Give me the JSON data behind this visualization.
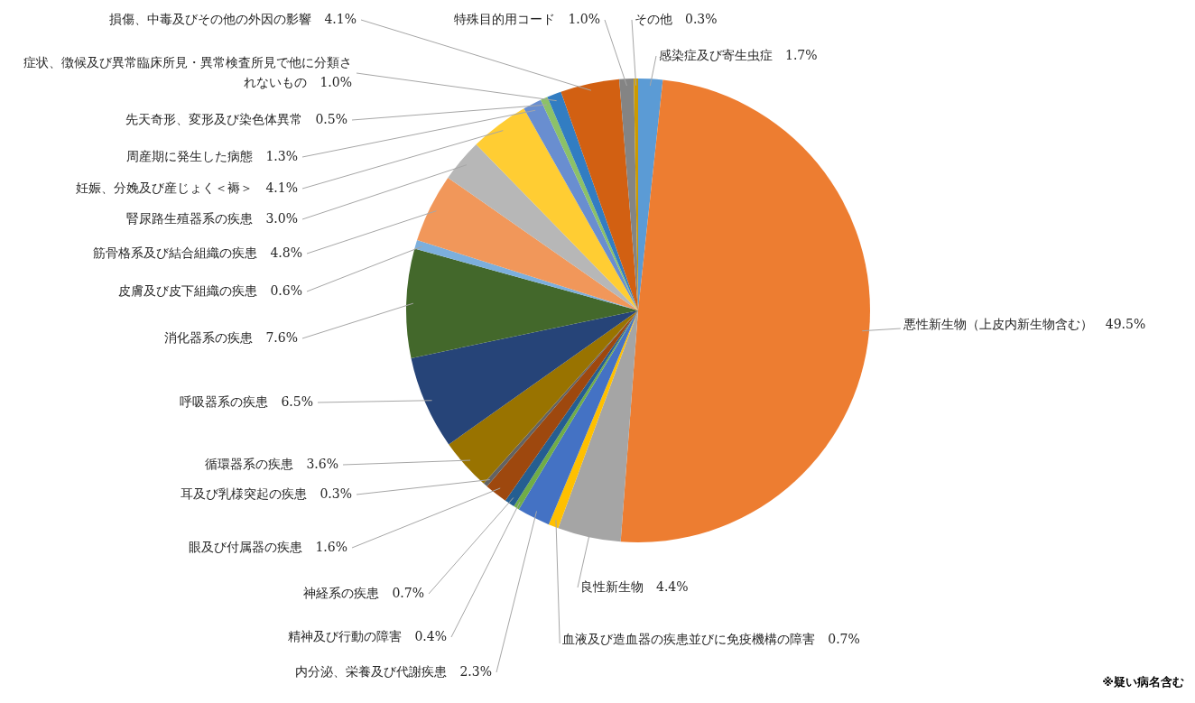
{
  "chart_data": {
    "type": "pie",
    "categories": [
      "感染症及び寄生虫症",
      "悪性新生物（上皮内新生物含む）",
      "良性新生物",
      "血液及び造血器の疾患並びに免疫機構の障害",
      "内分泌、栄養及び代謝疾患",
      "精神及び行動の障害",
      "神経系の疾患",
      "眼及び付属器の疾患",
      "耳及び乳様突起の疾患",
      "循環器系の疾患",
      "呼吸器系の疾患",
      "消化器系の疾患",
      "皮膚及び皮下組織の疾患",
      "筋骨格系及び結合組織の疾患",
      "腎尿路生殖器系の疾患",
      "妊娠、分娩及び産じょく＜褥＞",
      "周産期に発生した病態",
      "先天奇形、変形及び染色体異常",
      "症状、徴候及び異常臨床所見・異常検査所見で他に分類されないもの",
      "損傷、中毒及びその他の外因の影響",
      "特殊目的用コード",
      "その他"
    ],
    "values": [
      1.7,
      49.5,
      4.4,
      0.7,
      2.3,
      0.4,
      0.7,
      1.6,
      0.3,
      3.6,
      6.5,
      7.6,
      0.6,
      4.8,
      3.0,
      4.1,
      1.3,
      0.5,
      1.0,
      4.1,
      1.0,
      0.3
    ],
    "value_labels": [
      "1.7%",
      "49.5%",
      "4.4%",
      "0.7%",
      "2.3%",
      "0.4%",
      "0.7%",
      "1.6%",
      "0.3%",
      "3.6%",
      "6.5%",
      "7.6%",
      "0.6%",
      "4.8%",
      "3.0%",
      "4.1%",
      "1.3%",
      "0.5%",
      "1.0%",
      "4.1%",
      "1.0%",
      "0.3%"
    ],
    "colors": [
      "#5b9bd5",
      "#ed7d31",
      "#a5a5a5",
      "#ffc000",
      "#4472c4",
      "#70ad47",
      "#255e91",
      "#9e480e",
      "#636363",
      "#997300",
      "#264478",
      "#43682b",
      "#7cafdd",
      "#f1975a",
      "#b7b7b7",
      "#ffcd33",
      "#698ed0",
      "#8cc168",
      "#327dc2",
      "#d26012",
      "#848484",
      "#cc9a00"
    ],
    "annotations": [
      "※疑い病名含む"
    ]
  }
}
